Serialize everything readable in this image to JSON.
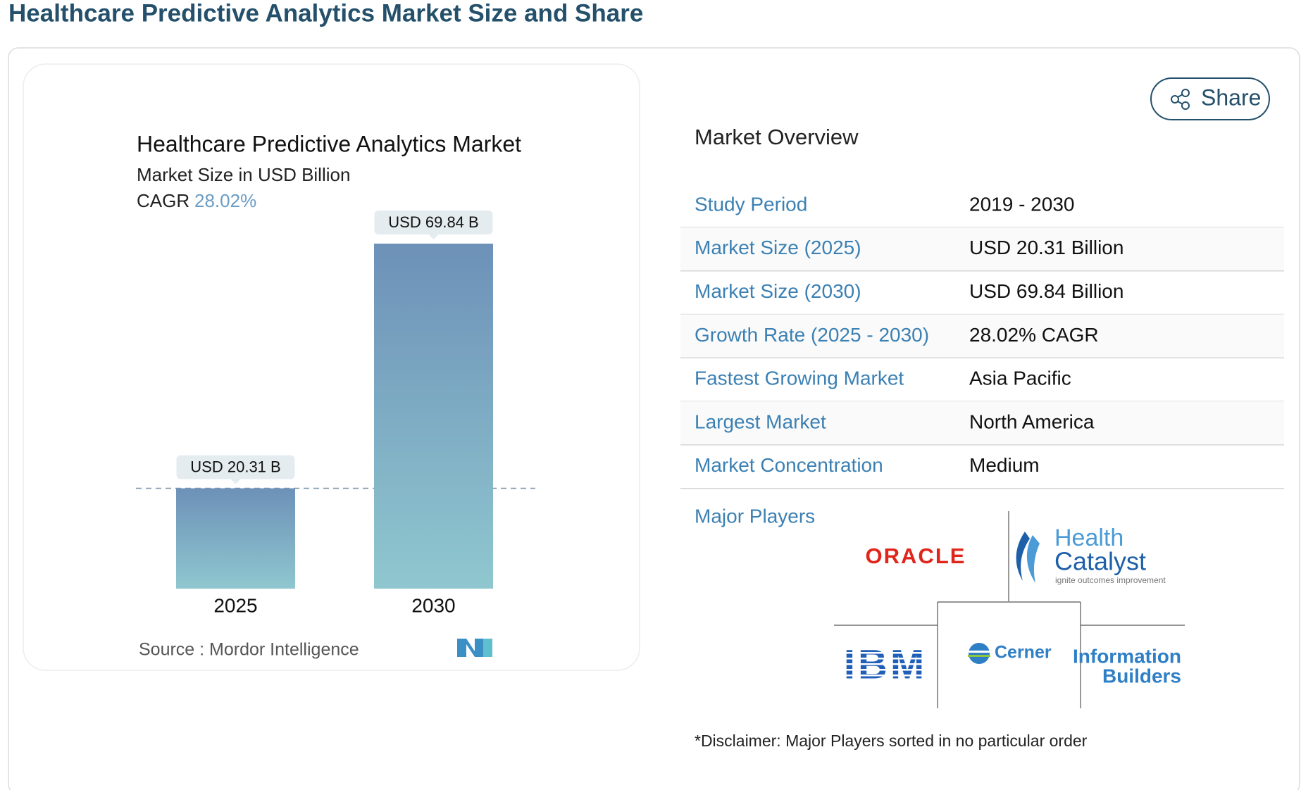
{
  "heading": "Healthcare Predictive Analytics Market Size and Share",
  "share": "Share",
  "chart_data": {
    "type": "bar",
    "title": "Healthcare Predictive Analytics Market",
    "subtitle": "Market Size in USD Billion",
    "cagr_label": "CAGR",
    "cagr": "28.02%",
    "categories": [
      "2025",
      "2030"
    ],
    "values": [
      20.31,
      69.84
    ],
    "value_labels": [
      "USD 20.31 B",
      "USD 69.84 B"
    ],
    "source": "Source :  Mordor Intelligence"
  },
  "overview": {
    "title": "Market Overview",
    "rows": [
      {
        "label": "Study Period",
        "value": "2019 - 2030"
      },
      {
        "label": "Market Size (2025)",
        "value": "USD 20.31 Billion"
      },
      {
        "label": "Market Size (2030)",
        "value": "USD 69.84 Billion"
      },
      {
        "label": "Growth Rate (2025 - 2030)",
        "value": "28.02% CAGR"
      },
      {
        "label": "Fastest Growing Market",
        "value": "Asia Pacific"
      },
      {
        "label": "Largest Market",
        "value": "North America"
      },
      {
        "label": "Market Concentration",
        "value": "Medium"
      }
    ]
  },
  "major_players": {
    "title": "Major Players",
    "logos": {
      "oracle": "ORACLE",
      "health": "Health",
      "catalyst": "Catalyst",
      "catalyst_tagline": "ignite outcomes improvement",
      "ibm": "IBM",
      "cerner": "Cerner",
      "information": "Information",
      "builders": "Builders"
    },
    "disclaimer": "*Disclaimer: Major Players sorted in no particular order"
  }
}
